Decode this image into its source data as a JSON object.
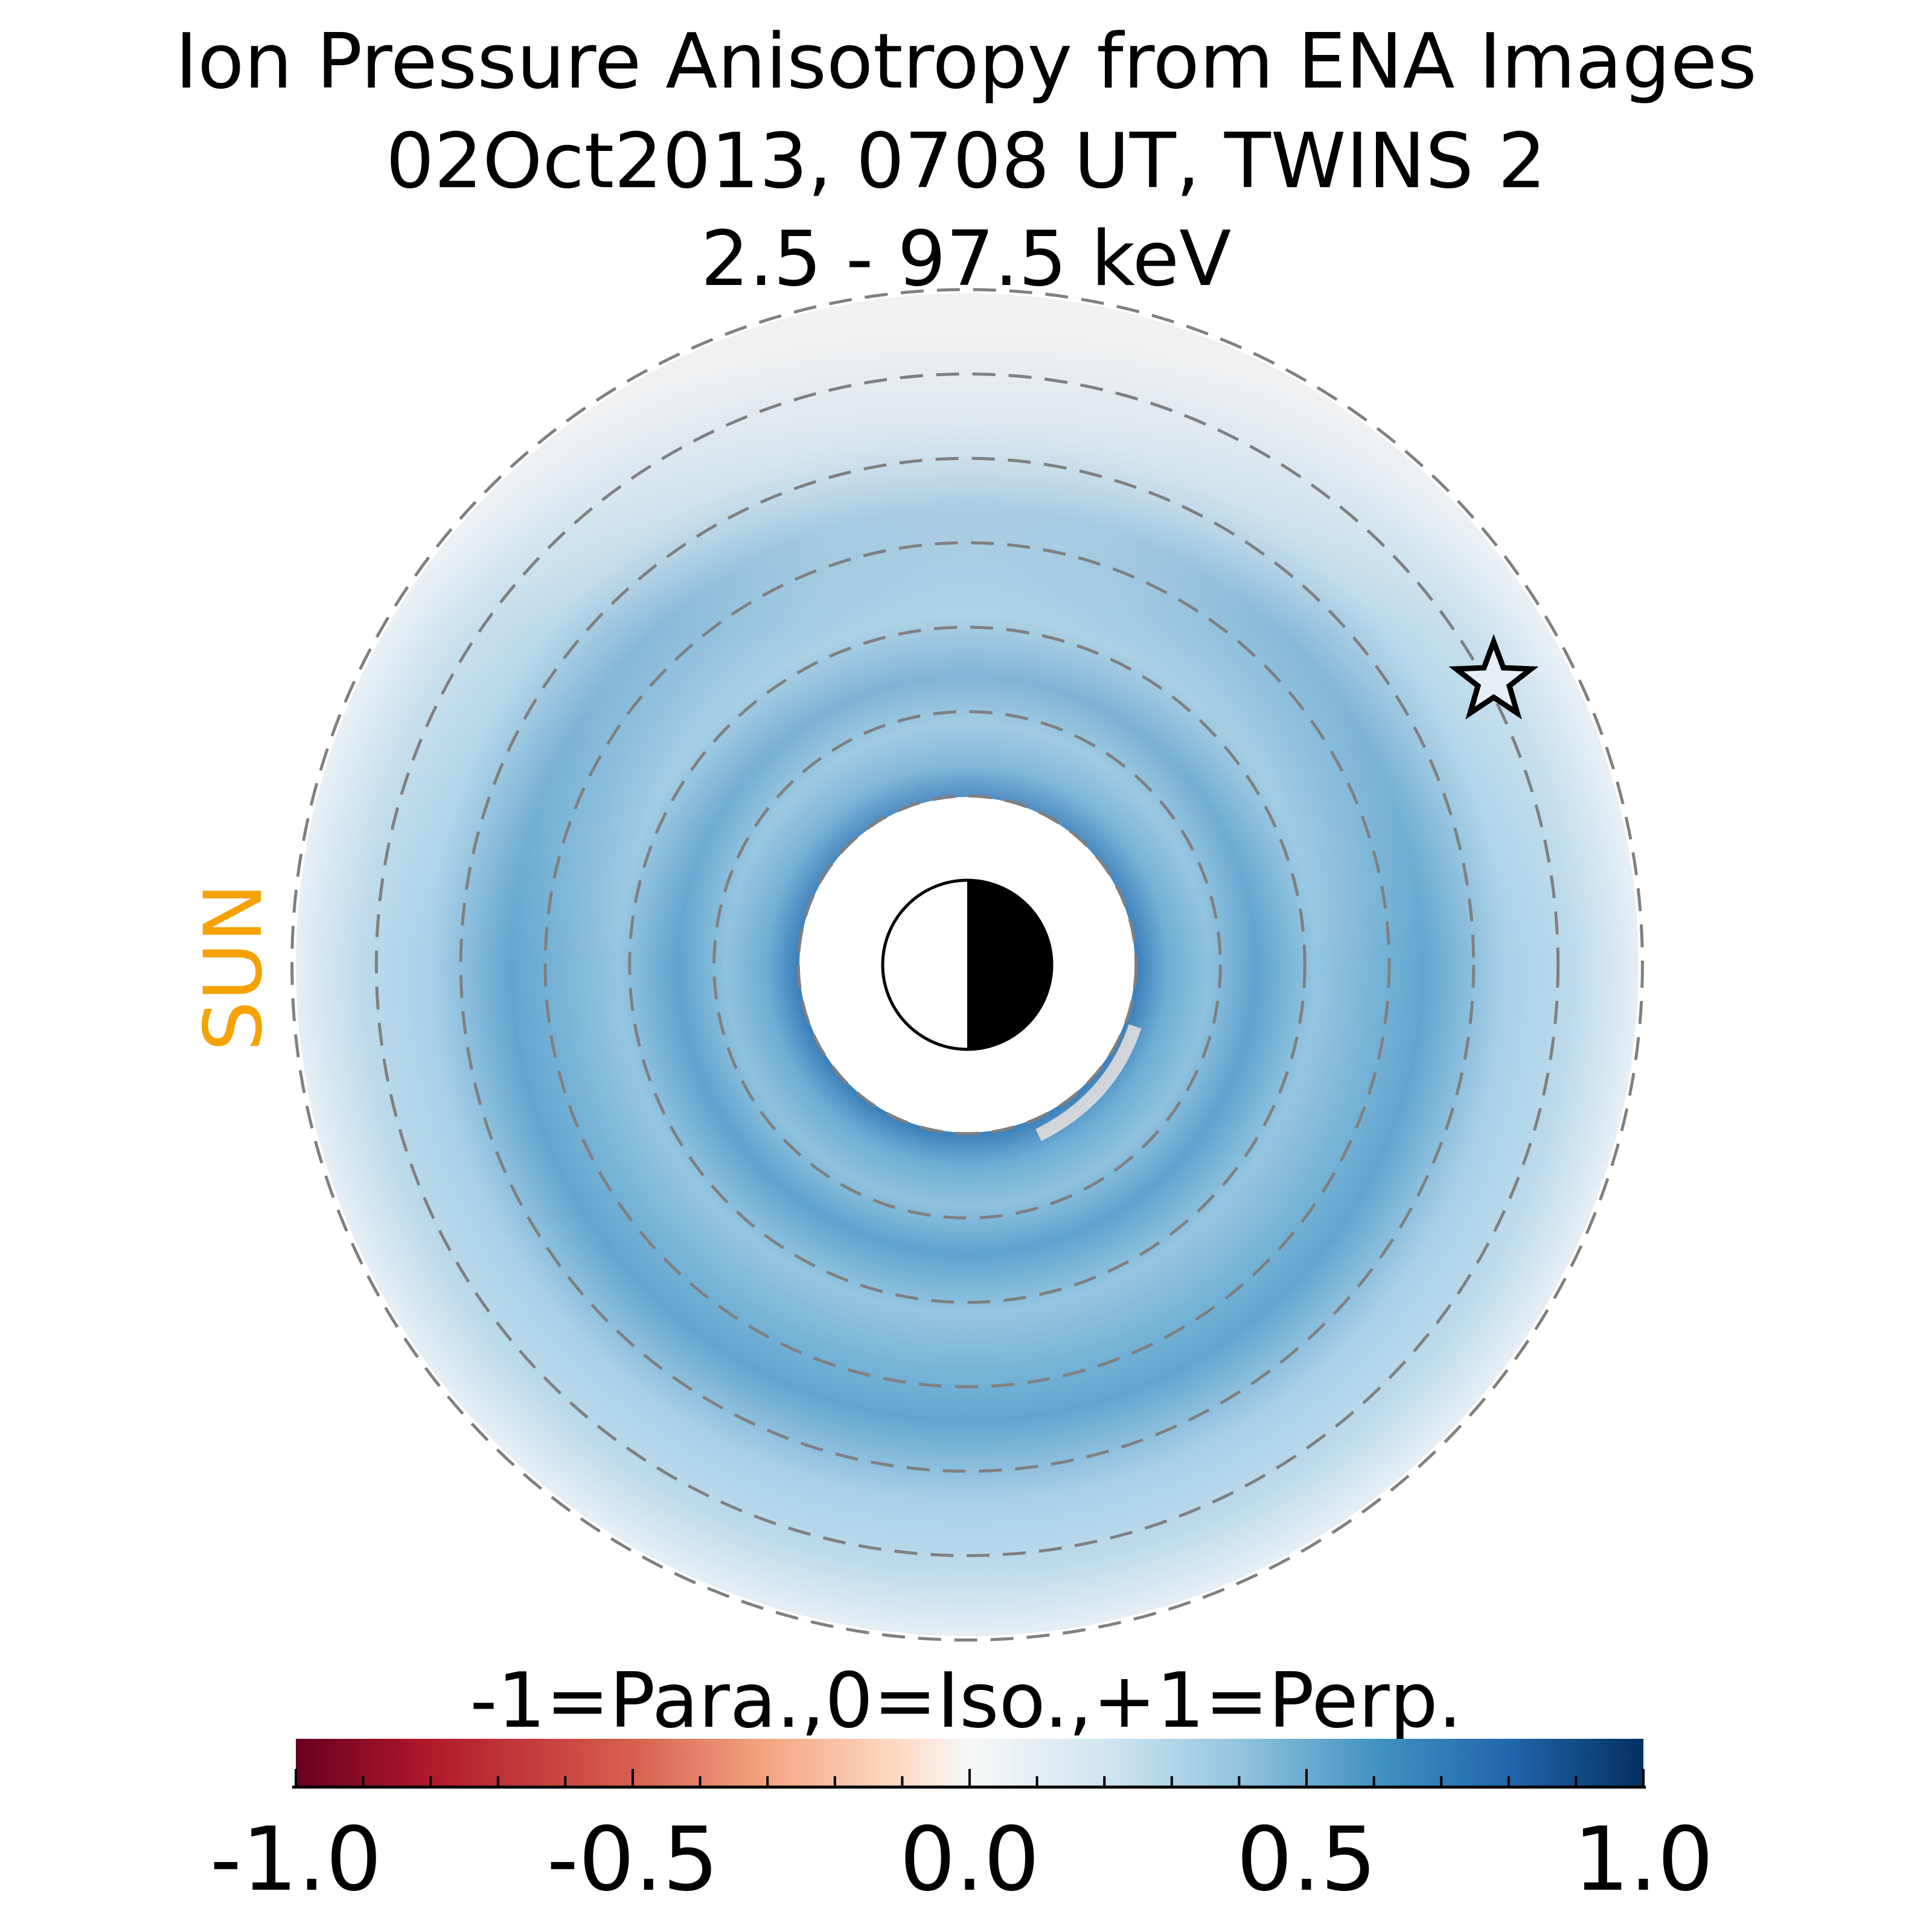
{
  "chart_data": {
    "type": "heatmap",
    "title": [
      "Ion Pressure Anisotropy from  ENA Images",
      "02Oct2013, 0708 UT,  TWINS 2",
      "2.5 - 97.5 keV"
    ],
    "projection": "polar equatorial plane, radial distance in Earth radii",
    "radial_grid_Re": [
      1,
      2,
      3,
      4,
      5,
      6,
      7,
      8
    ],
    "inner_boundary_Re": 2,
    "outer_boundary_Re": 8,
    "sun_label": "SUN",
    "sun_direction": "left",
    "spacecraft_marker": "star",
    "approx_radial_profile": [
      {
        "r": 2.0,
        "value": 0.6
      },
      {
        "r": 2.6,
        "value": 0.35
      },
      {
        "r": 3.4,
        "value": 0.5
      },
      {
        "r": 4.2,
        "value": 0.3
      },
      {
        "r": 5.2,
        "value": 0.5
      },
      {
        "r": 6.4,
        "value": 0.28
      },
      {
        "r": 7.3,
        "value": 0.2
      },
      {
        "r": 8.0,
        "value": 0.1
      }
    ],
    "colorbar": {
      "label": "-1=Para.,0=Iso.,+1=Perp.",
      "range": [
        -1.0,
        1.0
      ],
      "ticks": [
        "-1.0",
        "-0.5",
        "0.0",
        "0.5",
        "1.0"
      ],
      "tick_values": [
        -1.0,
        -0.5,
        0.0,
        0.5,
        1.0
      ],
      "minor_step": 0.1,
      "colormap": "RdBu (red=-1, blue=+1)"
    },
    "colors": {
      "para": "#67001f",
      "iso": "#f7f7f7",
      "perp": "#053061",
      "sun": "#f5a100",
      "grid": "#808080"
    }
  }
}
